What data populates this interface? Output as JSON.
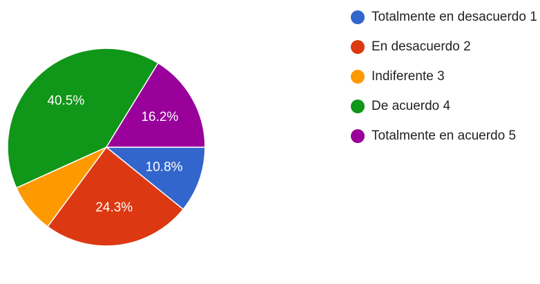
{
  "chart_data": {
    "type": "pie",
    "title": "",
    "start_angle_deg": 0,
    "direction": "clockwise",
    "legend_position": "right",
    "slices": [
      {
        "name": "Totalmente en desacuerdo 1",
        "value": 10.8,
        "label": "10.8%",
        "color": "#3366cc"
      },
      {
        "name": "En desacuerdo 2",
        "value": 24.3,
        "label": "24.3%",
        "color": "#dc3912"
      },
      {
        "name": "Indiferente 3",
        "value": 8.1,
        "label": "",
        "color": "#ff9900"
      },
      {
        "name": "De acuerdo 4",
        "value": 40.5,
        "label": "40.5%",
        "color": "#109618"
      },
      {
        "name": "Totalmente en acuerdo 5",
        "value": 16.2,
        "label": "16.2%",
        "color": "#990099"
      }
    ]
  }
}
